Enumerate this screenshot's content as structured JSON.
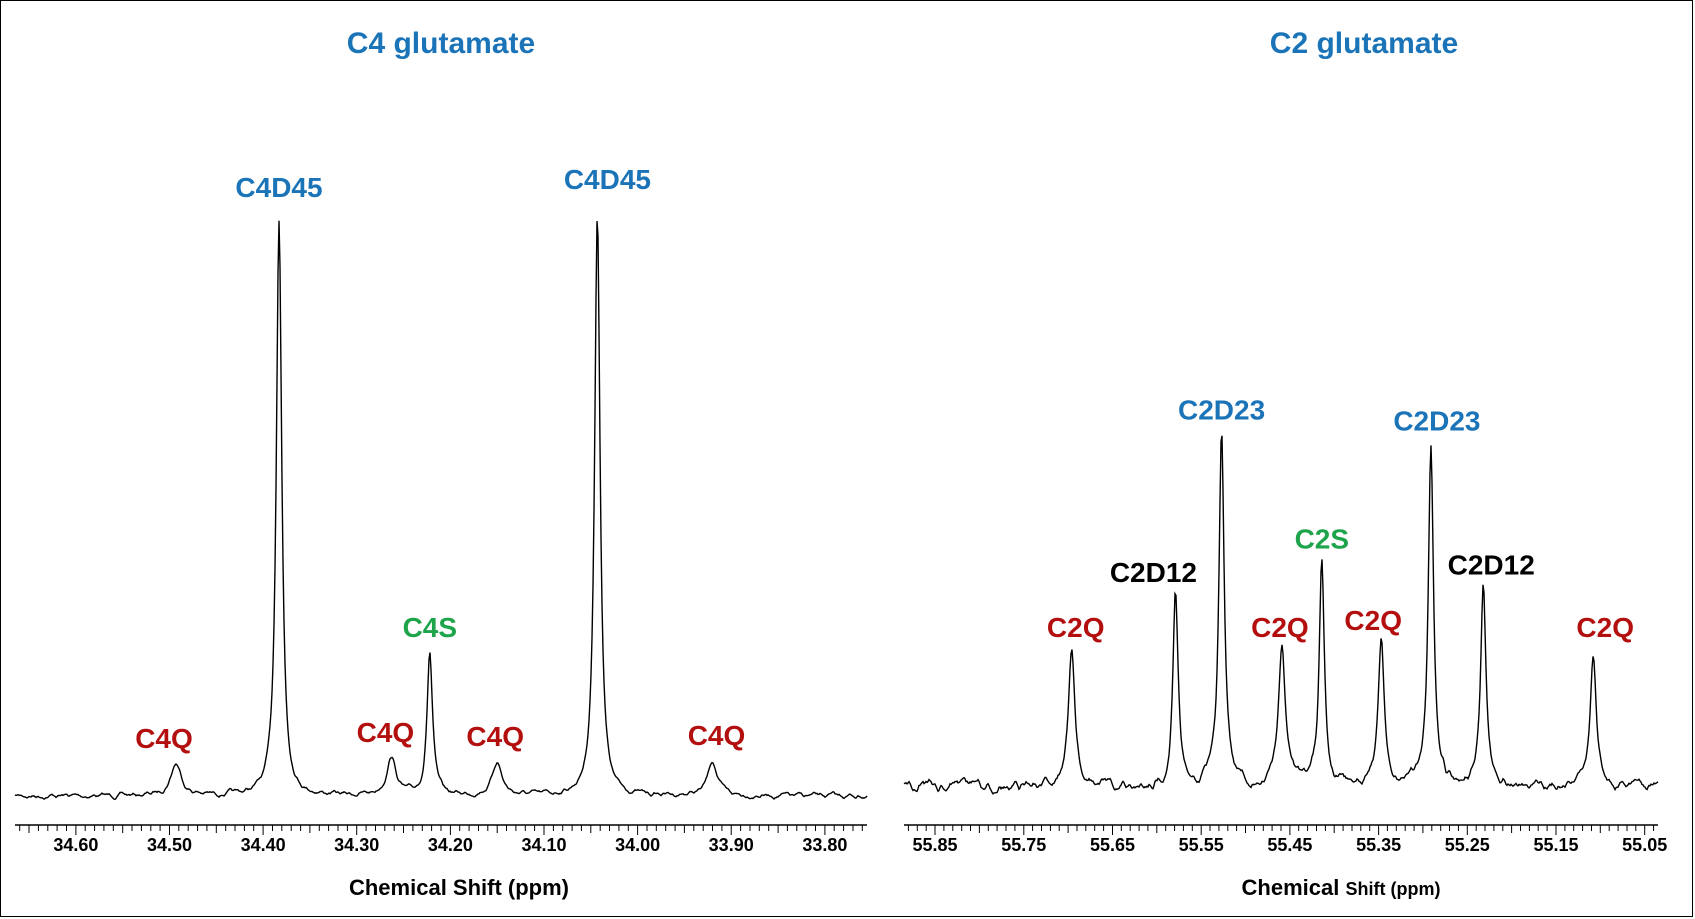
{
  "colors": {
    "blue": "#1c74b8",
    "red": "#b40f0f",
    "green": "#1ea44a",
    "black": "#000000"
  },
  "chart_data": [
    {
      "type": "line",
      "title": "C4 glutamate",
      "xlabel": "Chemical Shift (ppm)",
      "xlim": [
        34.665,
        33.755
      ],
      "ticks": [
        "34.60",
        "34.50",
        "34.40",
        "34.30",
        "34.20",
        "34.10",
        "34.00",
        "33.90",
        "33.80"
      ],
      "tick_values": [
        34.6,
        34.5,
        34.4,
        34.3,
        34.2,
        34.1,
        34.0,
        33.9,
        33.8
      ],
      "peaks": [
        {
          "label": "C4Q",
          "ppm": 34.493,
          "height": 0.055,
          "width": 0.007,
          "color": "red"
        },
        {
          "label": "C4D45",
          "ppm": 34.383,
          "height": 0.99,
          "width": 0.0035,
          "color": "blue"
        },
        {
          "label": "C4Q",
          "ppm": 34.263,
          "height": 0.065,
          "width": 0.006,
          "color": "red"
        },
        {
          "label": "C4S",
          "ppm": 34.222,
          "height": 0.245,
          "width": 0.0035,
          "color": "green"
        },
        {
          "label": "C4Q",
          "ppm": 34.15,
          "height": 0.058,
          "width": 0.006,
          "color": "red"
        },
        {
          "label": "C4D45",
          "ppm": 34.043,
          "height": 1.0,
          "width": 0.0035,
          "color": "blue"
        },
        {
          "label": "C4Q",
          "ppm": 33.92,
          "height": 0.06,
          "width": 0.006,
          "color": "red"
        }
      ]
    },
    {
      "type": "line",
      "title": "C2 glutamate",
      "xlabel_main": "Chemical ",
      "xlabel_small": "Shift (ppm)",
      "xlim": [
        55.885,
        55.035
      ],
      "ticks": [
        "55.85",
        "55.75",
        "55.65",
        "55.55",
        "55.45",
        "55.35",
        "55.25",
        "55.15",
        "55.05"
      ],
      "tick_values": [
        55.85,
        55.75,
        55.65,
        55.55,
        55.45,
        55.35,
        55.25,
        55.15,
        55.05
      ],
      "peaks": [
        {
          "label": "C2Q",
          "ppm": 55.696,
          "height": 0.36,
          "width": 0.0045,
          "color": "red"
        },
        {
          "label": "C2D12",
          "ppm": 55.579,
          "height": 0.51,
          "width": 0.0035,
          "color": "black"
        },
        {
          "label": "C2D23",
          "ppm": 55.527,
          "height": 0.95,
          "width": 0.0035,
          "color": "blue"
        },
        {
          "label": "C2Q",
          "ppm": 55.459,
          "height": 0.36,
          "width": 0.0045,
          "color": "red"
        },
        {
          "label": "C2S",
          "ppm": 55.414,
          "height": 0.6,
          "width": 0.0035,
          "color": "green"
        },
        {
          "label": "C2Q",
          "ppm": 55.347,
          "height": 0.38,
          "width": 0.004,
          "color": "red"
        },
        {
          "label": "C2D23",
          "ppm": 55.291,
          "height": 0.92,
          "width": 0.0035,
          "color": "blue"
        },
        {
          "label": "C2D12",
          "ppm": 55.232,
          "height": 0.53,
          "width": 0.0035,
          "color": "black"
        },
        {
          "label": "C2Q",
          "ppm": 55.108,
          "height": 0.36,
          "width": 0.004,
          "color": "red"
        }
      ]
    }
  ]
}
